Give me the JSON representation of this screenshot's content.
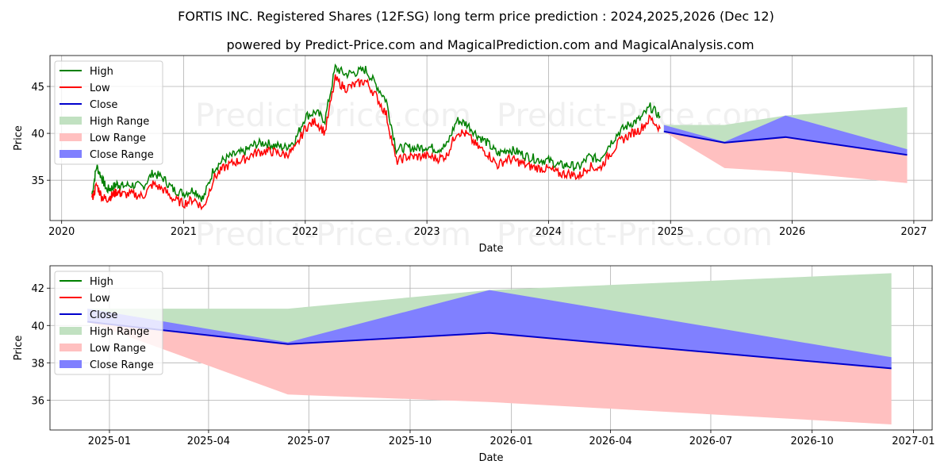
{
  "title": "FORTIS INC. Registered Shares (12F.SG) long term price prediction : 2024,2025,2026 (Dec 12)",
  "subtitle": "powered by Predict-Price.com and MagicalPrediction.com and MagicalAnalysis.com",
  "watermark": "Predict-Price.com",
  "colors": {
    "high": "#008000",
    "low": "#ff0000",
    "close": "#0000cc",
    "high_range": "#c1e1c1",
    "low_range": "#ffc0c0",
    "close_range": "#8080ff",
    "grid": "#b0b0b0"
  },
  "chart_data": [
    {
      "type": "line",
      "xlabel": "Date",
      "ylabel": "Price",
      "xlim": [
        "2019-11-27",
        "2027-02-25"
      ],
      "ylim": [
        30.7,
        48.3
      ],
      "x_ticks": [
        "2020",
        "2021",
        "2022",
        "2023",
        "2024",
        "2025",
        "2026",
        "2027"
      ],
      "x_tick_dates": [
        "2020-01-01",
        "2021-01-01",
        "2022-01-01",
        "2023-01-01",
        "2024-01-01",
        "2025-01-01",
        "2026-01-01",
        "2027-01-01"
      ],
      "y_ticks": [
        35,
        40,
        45
      ],
      "grid": true,
      "legend_position": "top-left",
      "legend": [
        "High",
        "Low",
        "Close",
        "High Range",
        "Low Range",
        "Close Range"
      ],
      "history": {
        "dates": [
          "2020-04-01",
          "2020-04-15",
          "2020-05-01",
          "2020-05-15",
          "2020-06-01",
          "2020-06-15",
          "2020-07-01",
          "2020-08-01",
          "2020-09-01",
          "2020-10-01",
          "2020-11-01",
          "2020-12-01",
          "2021-01-01",
          "2021-02-01",
          "2021-03-01",
          "2021-04-01",
          "2021-05-01",
          "2021-06-01",
          "2021-07-01",
          "2021-08-01",
          "2021-09-01",
          "2021-10-01",
          "2021-11-01",
          "2021-12-01",
          "2022-01-01",
          "2022-02-01",
          "2022-03-01",
          "2022-04-01",
          "2022-05-01",
          "2022-06-01",
          "2022-07-01",
          "2022-08-01",
          "2022-09-01",
          "2022-10-01",
          "2022-11-01",
          "2022-12-01",
          "2023-01-01",
          "2023-02-01",
          "2023-03-01",
          "2023-04-01",
          "2023-05-01",
          "2023-06-01",
          "2023-07-01",
          "2023-08-01",
          "2023-09-01",
          "2023-10-01",
          "2023-11-01",
          "2023-12-01",
          "2024-01-01",
          "2024-02-01",
          "2024-03-01",
          "2024-04-01",
          "2024-05-01",
          "2024-06-01",
          "2024-07-01",
          "2024-08-01",
          "2024-09-01",
          "2024-10-01",
          "2024-11-01",
          "2024-12-01"
        ],
        "high": [
          33.5,
          36.5,
          35.2,
          34.0,
          34.2,
          34.6,
          34.4,
          34.5,
          34.3,
          35.8,
          35.2,
          34.0,
          33.6,
          34.0,
          33.0,
          36.2,
          37.2,
          37.7,
          38.0,
          38.8,
          39.0,
          38.7,
          38.5,
          39.2,
          41.8,
          42.3,
          41.4,
          47.0,
          46.3,
          46.5,
          46.8,
          45.2,
          43.5,
          38.3,
          38.5,
          38.4,
          38.6,
          38.3,
          38.7,
          41.4,
          41.0,
          39.8,
          39.0,
          37.8,
          38.3,
          38.0,
          37.5,
          37.2,
          37.1,
          36.6,
          36.6,
          36.4,
          37.5,
          37.2,
          38.8,
          40.2,
          41.0,
          41.5,
          42.8,
          41.8
        ],
        "low": [
          33.0,
          34.5,
          33.2,
          33.0,
          33.4,
          33.8,
          33.5,
          33.5,
          33.3,
          34.6,
          34.0,
          33.0,
          32.5,
          33.0,
          32.0,
          35.2,
          36.3,
          36.9,
          37.2,
          37.9,
          38.1,
          38.0,
          37.7,
          38.3,
          40.6,
          41.3,
          40.1,
          45.8,
          44.8,
          45.2,
          45.6,
          44.0,
          42.0,
          37.0,
          37.5,
          37.5,
          37.6,
          37.3,
          37.6,
          40.2,
          39.9,
          38.6,
          37.9,
          36.6,
          37.3,
          37.0,
          36.5,
          36.3,
          36.2,
          35.7,
          35.7,
          35.4,
          36.5,
          36.2,
          37.7,
          39.1,
          39.9,
          40.4,
          41.6,
          40.5
        ]
      },
      "forecast": {
        "dates": [
          "2024-12-12",
          "2025-06-12",
          "2025-12-12",
          "2026-12-12"
        ],
        "high_range": [
          40.9,
          40.9,
          41.9,
          42.8
        ],
        "low_range": [
          40.2,
          36.3,
          35.9,
          34.7
        ],
        "close_range_upper": [
          40.9,
          39.1,
          41.9,
          38.3
        ],
        "close": [
          40.2,
          39.0,
          39.6,
          37.7
        ]
      }
    },
    {
      "type": "line",
      "xlabel": "Date",
      "ylabel": "Price",
      "xlim": [
        "2024-11-08",
        "2027-01-18"
      ],
      "ylim": [
        34.4,
        43.2
      ],
      "x_ticks": [
        "2025-01",
        "2025-04",
        "2025-07",
        "2025-10",
        "2026-01",
        "2026-04",
        "2026-07",
        "2026-10",
        "2027-01"
      ],
      "x_tick_dates": [
        "2025-01-01",
        "2025-04-01",
        "2025-07-01",
        "2025-10-01",
        "2026-01-01",
        "2026-04-01",
        "2026-07-01",
        "2026-10-01",
        "2027-01-01"
      ],
      "y_ticks": [
        36,
        38,
        40,
        42
      ],
      "grid": true,
      "legend_position": "top-left",
      "legend": [
        "High",
        "Low",
        "Close",
        "High Range",
        "Low Range",
        "Close Range"
      ],
      "forecast": {
        "dates": [
          "2024-12-12",
          "2025-06-12",
          "2025-12-12",
          "2026-12-12"
        ],
        "high_range": [
          40.9,
          40.9,
          41.9,
          42.8
        ],
        "low_range": [
          40.2,
          36.3,
          35.9,
          34.7
        ],
        "close_range_upper": [
          40.9,
          39.1,
          41.9,
          38.3
        ],
        "close": [
          40.2,
          39.0,
          39.6,
          37.7
        ]
      }
    }
  ]
}
